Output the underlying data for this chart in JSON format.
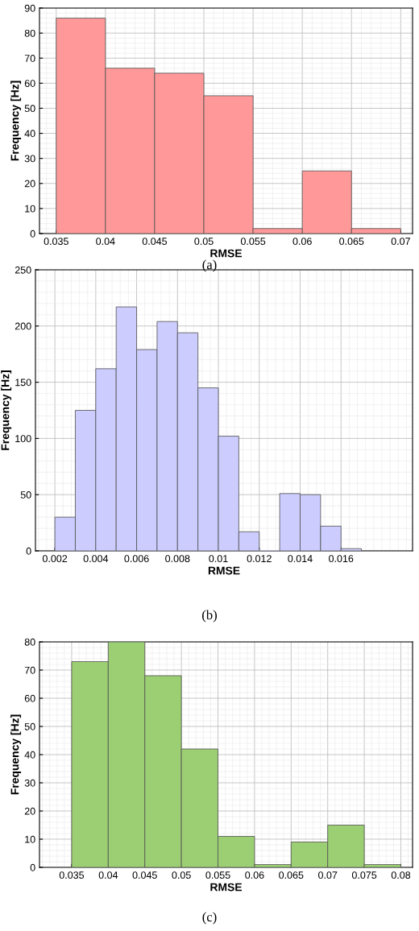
{
  "chart_data": [
    {
      "type": "histogram",
      "xlabel": "RMSE",
      "ylabel": "Frequency [Hz]",
      "annotations": [
        "(a)"
      ],
      "color": "#ff9999",
      "bins": [
        0.035,
        0.04,
        0.045,
        0.05,
        0.055,
        0.06,
        0.065,
        0.07
      ],
      "values": [
        86,
        66,
        64,
        55,
        2,
        25,
        2
      ],
      "xlim": [
        0.0333,
        0.0712
      ],
      "xticks": [
        0.035,
        0.04,
        0.045,
        0.05,
        0.055,
        0.06,
        0.065,
        0.07
      ],
      "ylim": [
        0,
        90
      ],
      "yticks": [
        0,
        10,
        20,
        30,
        40,
        50,
        60,
        70,
        80,
        90
      ],
      "grid": true
    },
    {
      "type": "histogram",
      "xlabel": "RMSE",
      "ylabel": "Frequency [Hz]",
      "annotations": [
        "(b)"
      ],
      "color": "#ccccff",
      "bins": [
        0.002,
        0.003,
        0.004,
        0.005,
        0.006,
        0.007,
        0.008,
        0.009,
        0.01,
        0.011,
        0.012,
        0.013,
        0.014,
        0.015,
        0.016,
        0.017
      ],
      "values": [
        30,
        125,
        162,
        217,
        179,
        204,
        194,
        145,
        102,
        17,
        0,
        51,
        50,
        22,
        2
      ],
      "xlim": [
        0.00105,
        0.0195
      ],
      "xticks": [
        0.002,
        0.004,
        0.006,
        0.008,
        0.01,
        0.012,
        0.014,
        0.016
      ],
      "ylim": [
        0,
        250
      ],
      "yticks": [
        0,
        50,
        100,
        150,
        200,
        250
      ],
      "grid": true
    },
    {
      "type": "histogram",
      "xlabel": "RMSE",
      "ylabel": "Frequency [Hz]",
      "annotations": [
        "(c)"
      ],
      "color": "#9ccf73",
      "bins": [
        0.035,
        0.04,
        0.045,
        0.05,
        0.055,
        0.06,
        0.065,
        0.07,
        0.075,
        0.08
      ],
      "values": [
        73,
        80,
        68,
        42,
        11,
        1,
        9,
        15,
        1
      ],
      "xlim": [
        0.0306,
        0.0816
      ],
      "xticks": [
        0.035,
        0.04,
        0.045,
        0.05,
        0.055,
        0.06,
        0.065,
        0.07,
        0.075,
        0.08
      ],
      "ylim": [
        0,
        80
      ],
      "yticks": [
        0,
        10,
        20,
        30,
        40,
        50,
        60,
        70,
        80
      ],
      "grid": true
    }
  ]
}
